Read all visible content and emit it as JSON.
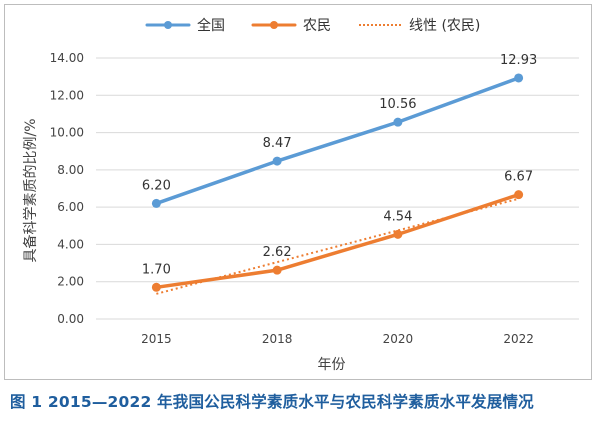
{
  "caption": "图 1  2015—2022 年我国公民科学素质水平与农民科学素质水平发展情况",
  "colors": {
    "national": "#5b9bd5",
    "farmer": "#ed7d31",
    "trend": "#ed7d31",
    "grid": "#d9d9d9",
    "caption": "#1f5e9e"
  },
  "chart_data": {
    "type": "line",
    "categories": [
      "2015",
      "2018",
      "2020",
      "2022"
    ],
    "series": [
      {
        "name": "全国",
        "values": [
          6.2,
          8.47,
          10.56,
          12.93
        ],
        "value_labels": [
          "6.20",
          "8.47",
          "10.56",
          "12.93"
        ]
      },
      {
        "name": "农民",
        "values": [
          1.7,
          2.62,
          4.54,
          6.67
        ],
        "value_labels": [
          "1.70",
          "2.62",
          "4.54",
          "6.67"
        ]
      }
    ],
    "trendline": {
      "name": "线性 (农民)",
      "of_series": "农民",
      "style": "dotted",
      "start": 1.35,
      "end": 6.45
    },
    "xlabel": "年份",
    "ylabel": "具备科学素质的比例/%",
    "ylim": [
      0,
      14
    ],
    "yticks": [
      "0.00",
      "2.00",
      "4.00",
      "6.00",
      "8.00",
      "10.00",
      "12.00",
      "14.00"
    ],
    "grid": true,
    "legend_position": "top"
  }
}
